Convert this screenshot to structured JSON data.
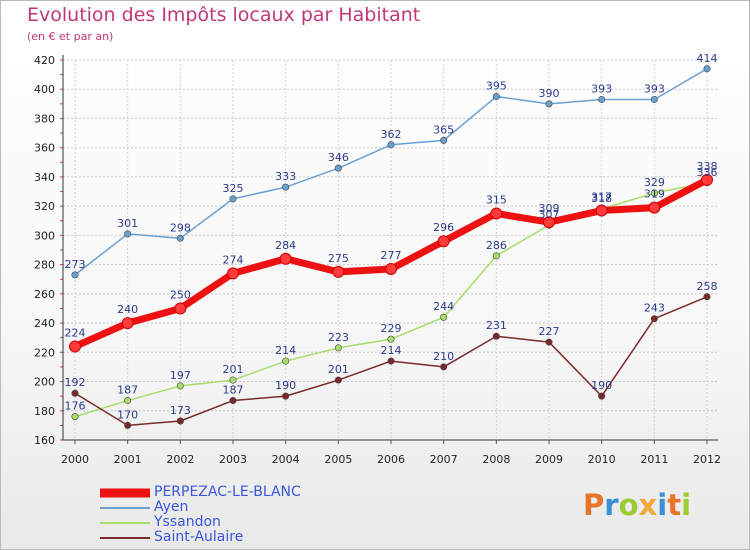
{
  "header": {
    "title": "Evolution des Impôts locaux par Habitant",
    "subtitle": "(en € et par an)"
  },
  "logo": {
    "text": "Proxiti",
    "colors": [
      "#e8742a",
      "#3b8ed8",
      "#9acd32",
      "#f2a93b",
      "#3b8ed8",
      "#e8742a",
      "#9acd32"
    ]
  },
  "chart_data": {
    "type": "line",
    "title": "Evolution des Impôts locaux par Habitant",
    "subtitle": "(en € et par an)",
    "xlabel": "",
    "ylabel": "",
    "ylim": [
      160,
      420
    ],
    "yticks": [
      160,
      180,
      200,
      220,
      240,
      260,
      280,
      300,
      320,
      340,
      360,
      380,
      400,
      420
    ],
    "grid": true,
    "categories": [
      "2000",
      "2001",
      "2002",
      "2003",
      "2004",
      "2005",
      "2006",
      "2007",
      "2008",
      "2009",
      "2010",
      "2011",
      "2012"
    ],
    "series": [
      {
        "name": "PERPEZAC-LE-BLANC",
        "color": "#ee1111",
        "values": [
          224,
          240,
          250,
          274,
          284,
          275,
          277,
          296,
          315,
          309,
          317,
          319,
          338
        ]
      },
      {
        "name": "Ayen",
        "color": "#6aa0d0",
        "values": [
          273,
          301,
          298,
          325,
          333,
          346,
          362,
          365,
          395,
          390,
          393,
          393,
          414
        ]
      },
      {
        "name": "Yssandon",
        "color": "#a7dd6a",
        "values": [
          176,
          187,
          197,
          201,
          214,
          223,
          229,
          244,
          286,
          307,
          318,
          329,
          336
        ]
      },
      {
        "name": "Saint-Aulaire",
        "color": "#7a2a2a",
        "values": [
          192,
          170,
          173,
          187,
          190,
          201,
          214,
          210,
          231,
          227,
          190,
          243,
          258
        ]
      }
    ]
  }
}
